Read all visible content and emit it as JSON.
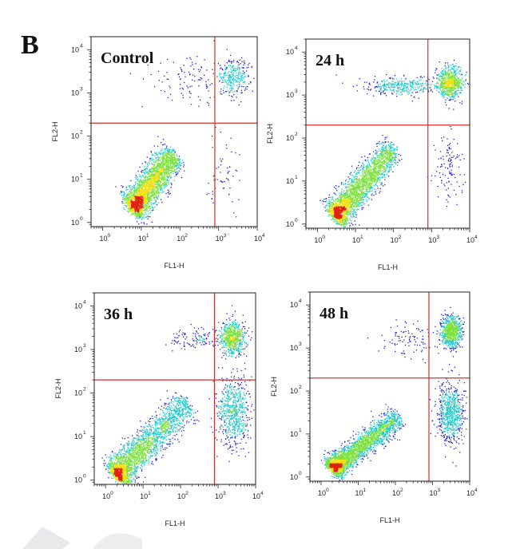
{
  "figure_label": "B",
  "colors": {
    "quadrant_line": "#d03030",
    "frame": "#222222",
    "density_low": "#2020c8",
    "density_mid": "#1ec8c8",
    "density_high": "#f0e010",
    "density_peak": "#e02010"
  },
  "chart_data": [
    {
      "type": "scatter",
      "title": "Control",
      "xlabel": "FL1-H",
      "ylabel": "FL2-H",
      "x_scale": "log",
      "y_scale": "log",
      "xlim": [
        0.5,
        10000
      ],
      "ylim": [
        0.8,
        20000
      ],
      "x_ticks": [
        {
          "base": "10",
          "exp": "0"
        },
        {
          "base": "10",
          "exp": "1"
        },
        {
          "base": "10",
          "exp": "2"
        },
        {
          "base": "10",
          "exp": "3"
        },
        {
          "base": "10",
          "exp": "4"
        }
      ],
      "y_ticks": [
        {
          "base": "10",
          "exp": "0"
        },
        {
          "base": "10",
          "exp": "1"
        },
        {
          "base": "10",
          "exp": "2"
        },
        {
          "base": "10",
          "exp": "3"
        },
        {
          "base": "10",
          "exp": "4"
        }
      ],
      "quadrant_gate": {
        "x": 800,
        "y": 200
      },
      "populations": [
        {
          "name": "diagonal",
          "n": 2600,
          "x_start": 6,
          "x_end": 70,
          "y_start": 2,
          "y_end": 40,
          "spread": 0.17,
          "bias": 0.25
        },
        {
          "name": "upper-right",
          "n": 280,
          "x_center": 2500,
          "y_center": 2200,
          "sx": 0.2,
          "sy": 0.22
        },
        {
          "name": "upper-sparse",
          "n": 110,
          "x_center": 200,
          "y_center": 1800,
          "sx": 0.5,
          "sy": 0.3
        },
        {
          "name": "lower-right",
          "n": 60,
          "x_center": 1300,
          "y_center": 12,
          "sx": 0.2,
          "sy": 0.45
        }
      ]
    },
    {
      "type": "scatter",
      "title": "24 h",
      "xlabel": "FL1-H",
      "ylabel": "FL2-H",
      "x_scale": "log",
      "y_scale": "log",
      "xlim": [
        0.5,
        10000
      ],
      "ylim": [
        0.8,
        20000
      ],
      "x_ticks": [
        {
          "base": "10",
          "exp": "0"
        },
        {
          "base": "10",
          "exp": "1"
        },
        {
          "base": "10",
          "exp": "2"
        },
        {
          "base": "10",
          "exp": "3"
        },
        {
          "base": "10",
          "exp": "4"
        }
      ],
      "y_ticks": [
        {
          "base": "10",
          "exp": "0"
        },
        {
          "base": "10",
          "exp": "1"
        },
        {
          "base": "10",
          "exp": "2"
        },
        {
          "base": "10",
          "exp": "3"
        },
        {
          "base": "10",
          "exp": "4"
        }
      ],
      "quadrant_gate": {
        "x": 800,
        "y": 200
      },
      "populations": [
        {
          "name": "diagonal",
          "n": 2500,
          "x_start": 3,
          "x_end": 100,
          "y_start": 1.5,
          "y_end": 60,
          "spread": 0.16,
          "bias": 0.4
        },
        {
          "name": "upper-right",
          "n": 700,
          "x_center": 3000,
          "y_center": 1900,
          "sx": 0.18,
          "sy": 0.18
        },
        {
          "name": "upper-band",
          "n": 350,
          "x_center": 150,
          "y_center": 1600,
          "sx": 0.5,
          "sy": 0.1
        },
        {
          "name": "lower-right",
          "n": 120,
          "x_center": 2800,
          "y_center": 20,
          "sx": 0.2,
          "sy": 0.4
        }
      ]
    },
    {
      "type": "scatter",
      "title": "36 h",
      "xlabel": "FL1-H",
      "ylabel": "FL2-H",
      "x_scale": "log",
      "y_scale": "log",
      "xlim": [
        0.5,
        10000
      ],
      "ylim": [
        0.8,
        20000
      ],
      "x_ticks": [
        {
          "base": "10",
          "exp": "0"
        },
        {
          "base": "10",
          "exp": "1"
        },
        {
          "base": "10",
          "exp": "2"
        },
        {
          "base": "10",
          "exp": "3"
        },
        {
          "base": "10",
          "exp": "4"
        }
      ],
      "y_ticks": [
        {
          "base": "10",
          "exp": "0"
        },
        {
          "base": "10",
          "exp": "1"
        },
        {
          "base": "10",
          "exp": "2"
        },
        {
          "base": "10",
          "exp": "3"
        },
        {
          "base": "10",
          "exp": "4"
        }
      ],
      "quadrant_gate": {
        "x": 800,
        "y": 200
      },
      "populations": [
        {
          "name": "diagonal",
          "n": 2500,
          "x_start": 2,
          "x_end": 150,
          "y_start": 1.3,
          "y_end": 60,
          "spread": 0.18,
          "bias": 0.55
        },
        {
          "name": "upper-right",
          "n": 650,
          "x_center": 2500,
          "y_center": 1800,
          "sx": 0.16,
          "sy": 0.2
        },
        {
          "name": "upper-band",
          "n": 120,
          "x_center": 250,
          "y_center": 1700,
          "sx": 0.35,
          "sy": 0.12
        },
        {
          "name": "lower-right",
          "n": 650,
          "x_center": 2500,
          "y_center": 35,
          "sx": 0.22,
          "sy": 0.4
        }
      ]
    },
    {
      "type": "scatter",
      "title": "48 h",
      "xlabel": "FL1-H",
      "ylabel": "FL2-H",
      "x_scale": "log",
      "y_scale": "log",
      "xlim": [
        0.5,
        10000
      ],
      "ylim": [
        0.8,
        20000
      ],
      "x_ticks": [
        {
          "base": "10",
          "exp": "0"
        },
        {
          "base": "10",
          "exp": "1"
        },
        {
          "base": "10",
          "exp": "2"
        },
        {
          "base": "10",
          "exp": "3"
        },
        {
          "base": "10",
          "exp": "4"
        }
      ],
      "y_ticks": [
        {
          "base": "10",
          "exp": "0"
        },
        {
          "base": "10",
          "exp": "1"
        },
        {
          "base": "10",
          "exp": "2"
        },
        {
          "base": "10",
          "exp": "3"
        },
        {
          "base": "10",
          "exp": "4"
        }
      ],
      "quadrant_gate": {
        "x": 800,
        "y": 200
      },
      "populations": [
        {
          "name": "diagonal",
          "n": 2700,
          "x_start": 2,
          "x_end": 120,
          "y_start": 1.5,
          "y_end": 25,
          "spread": 0.13,
          "bias": 0.5
        },
        {
          "name": "upper-right",
          "n": 750,
          "x_center": 3200,
          "y_center": 2300,
          "sx": 0.14,
          "sy": 0.18
        },
        {
          "name": "upper-sparse",
          "n": 100,
          "x_center": 250,
          "y_center": 1500,
          "sx": 0.4,
          "sy": 0.2
        },
        {
          "name": "lower-right",
          "n": 700,
          "x_center": 3000,
          "y_center": 30,
          "sx": 0.18,
          "sy": 0.35
        }
      ]
    }
  ]
}
